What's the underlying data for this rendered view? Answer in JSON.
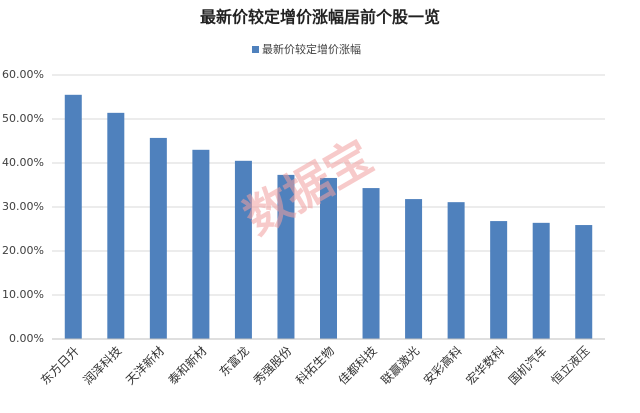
{
  "chart_data": {
    "type": "bar",
    "title": "最新价较定增价涨幅居前个股一览",
    "categories": [
      "东方日升",
      "润泽科技",
      "天洋新材",
      "泰和新材",
      "东富龙",
      "秀强股份",
      "科拓生物",
      "佳都科技",
      "联赢激光",
      "安彩高科",
      "宏华数科",
      "国机汽车",
      "恒立液压"
    ],
    "series": [
      {
        "name": "最新价较定增价涨幅",
        "color": "#4f81bd",
        "values": [
          55.5,
          51.4,
          45.7,
          43.0,
          40.5,
          37.3,
          36.6,
          34.3,
          31.8,
          31.1,
          26.8,
          26.4,
          25.9
        ]
      }
    ],
    "ylim": [
      0,
      60
    ],
    "yticks": [
      {
        "value": 0,
        "label": "0.00%"
      },
      {
        "value": 10,
        "label": "10.00%"
      },
      {
        "value": 20,
        "label": "20.00%"
      },
      {
        "value": 30,
        "label": "30.00%"
      },
      {
        "value": 40,
        "label": "40.00%"
      },
      {
        "value": 50,
        "label": "50.00%"
      },
      {
        "value": 60,
        "label": "60.00%"
      }
    ],
    "grid": true,
    "legend": "top",
    "watermark": "数据宝"
  }
}
